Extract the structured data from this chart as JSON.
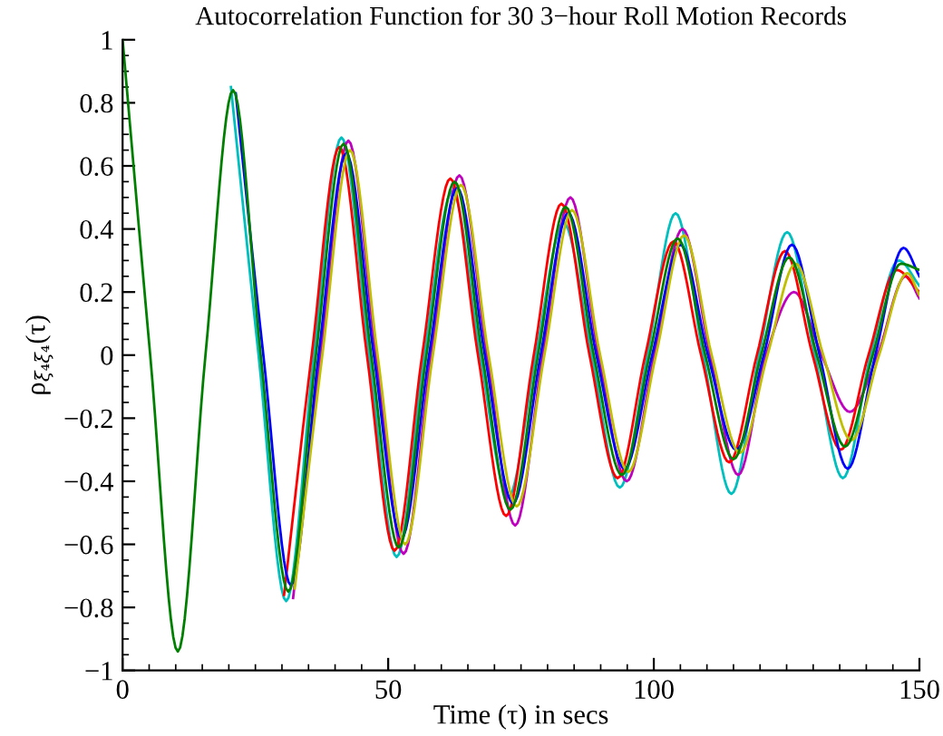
{
  "chart_data": {
    "type": "line",
    "title": "Autocorrelation Function for 30 3−hour Roll Motion Records",
    "xlabel": "Time (τ) in secs",
    "ylabel": "ρ$_{ξ₄ξ₄}$(τ)",
    "x": [
      0,
      5.2,
      10.4,
      15.6,
      20.8,
      26,
      31.2,
      36.4,
      41.6,
      46.8,
      52,
      57.2,
      62.5,
      67.7,
      73,
      78.2,
      83.4,
      88.7,
      94,
      99.2,
      104.5,
      109.7,
      115,
      120.2,
      125.5,
      130.7,
      136,
      141.2,
      146.5,
      150
    ],
    "series": [
      {
        "color": "#00bfbf",
        "x": [
          20.4,
          25.6,
          30.8,
          36,
          41.2,
          46.4,
          51.6,
          56.8,
          62.1,
          67.3,
          72.6,
          77.8,
          83,
          88.3,
          93.6,
          98.8,
          104.1,
          109.3,
          114.6,
          119.8,
          125.1,
          130.3,
          135.6,
          140.8,
          146.1,
          150
        ],
        "values": [
          0.85,
          0,
          -0.78,
          0,
          0.69,
          0,
          -0.64,
          0,
          0.52,
          0,
          -0.45,
          0,
          0.42,
          0,
          -0.42,
          0,
          0.45,
          0,
          -0.44,
          0,
          0.39,
          0,
          -0.39,
          0,
          0.3,
          0.22
        ]
      },
      {
        "color": "#bf00bf",
        "x": [
          32.1,
          37.3,
          42.5,
          47.7,
          52.9,
          58.1,
          63.4,
          68.6,
          73.9,
          79.1,
          84.3,
          89.6,
          94.9,
          100.1,
          105.4,
          110.6,
          115.9,
          121.1,
          126.4,
          131.6,
          136.9,
          142.1,
          147.4,
          150
        ],
        "values": [
          -0.77,
          0,
          0.68,
          0,
          -0.63,
          0,
          0.57,
          0,
          -0.54,
          0,
          0.5,
          0,
          -0.4,
          0,
          0.4,
          0,
          -0.38,
          0,
          0.2,
          0,
          -0.18,
          0,
          0.25,
          0.18
        ]
      },
      {
        "color": "#ff0000",
        "x": [
          30.4,
          35.6,
          40.8,
          46,
          51.2,
          56.4,
          61.7,
          66.9,
          72.2,
          77.4,
          82.6,
          87.9,
          93.2,
          98.4,
          103.7,
          108.9,
          114.2,
          119.4,
          124.7,
          129.9,
          135.2,
          140.4,
          145.7,
          150
        ],
        "values": [
          -0.76,
          0,
          0.66,
          0,
          -0.62,
          0,
          0.56,
          0,
          -0.51,
          0,
          0.48,
          0,
          -0.39,
          0,
          0.36,
          0,
          -0.34,
          0,
          0.33,
          0,
          -0.3,
          0,
          0.27,
          0.2
        ]
      },
      {
        "color": "#0000ff",
        "x": [
          21.3,
          26.5,
          31.7,
          36.9,
          42.1,
          47.3,
          52.5,
          57.7,
          63,
          68.2,
          73.5,
          78.7,
          83.9,
          89.2,
          94.5,
          99.7,
          105,
          110.2,
          115.5,
          120.7,
          126,
          131.2,
          136.5,
          141.7,
          147,
          150
        ],
        "values": [
          0.83,
          0,
          -0.73,
          0,
          0.64,
          0,
          -0.58,
          0,
          0.53,
          0,
          -0.47,
          0,
          0.45,
          0,
          -0.36,
          0,
          0.35,
          0,
          -0.3,
          0,
          0.35,
          0,
          -0.36,
          0,
          0.34,
          0.25
        ]
      },
      {
        "color": "#bfbf00",
        "x": [
          32.4,
          37.6,
          42.8,
          48,
          53.2,
          58.4,
          63.7,
          68.9,
          74.2,
          79.4,
          84.6,
          89.9,
          95.2,
          100.4,
          105.7,
          110.9,
          116.2,
          121.4,
          126.7,
          131.9,
          137.2,
          142.4,
          147.7,
          150
        ],
        "values": [
          -0.74,
          0,
          0.65,
          0,
          -0.6,
          0,
          0.54,
          0,
          -0.48,
          0,
          0.46,
          0,
          -0.37,
          0,
          0.38,
          0,
          -0.31,
          0,
          0.29,
          0,
          -0.27,
          0,
          0.26,
          0.19
        ]
      },
      {
        "color": "#008000",
        "values": [
          1,
          0,
          -0.94,
          0,
          0.84,
          0,
          -0.75,
          0,
          0.67,
          0,
          -0.61,
          0,
          0.55,
          0,
          -0.49,
          0,
          0.47,
          0,
          -0.38,
          0,
          0.37,
          0,
          -0.33,
          0,
          0.31,
          0,
          -0.29,
          0,
          0.29,
          0.27
        ]
      }
    ],
    "xlim": [
      0,
      150
    ],
    "xticks": [
      0,
      50,
      100,
      150
    ],
    "ylim": [
      -1,
      1
    ],
    "yticks": [
      {
        "value": -1,
        "label": "−1"
      },
      {
        "value": -0.8,
        "label": "−0.8"
      },
      {
        "value": -0.6,
        "label": "−0.6"
      },
      {
        "value": -0.4,
        "label": "−0.4"
      },
      {
        "value": -0.2,
        "label": "−0.2"
      },
      0,
      0.2,
      0.4,
      0.6,
      0.8,
      1
    ],
    "grid": false,
    "marker": "none",
    "line_style": "solid"
  }
}
